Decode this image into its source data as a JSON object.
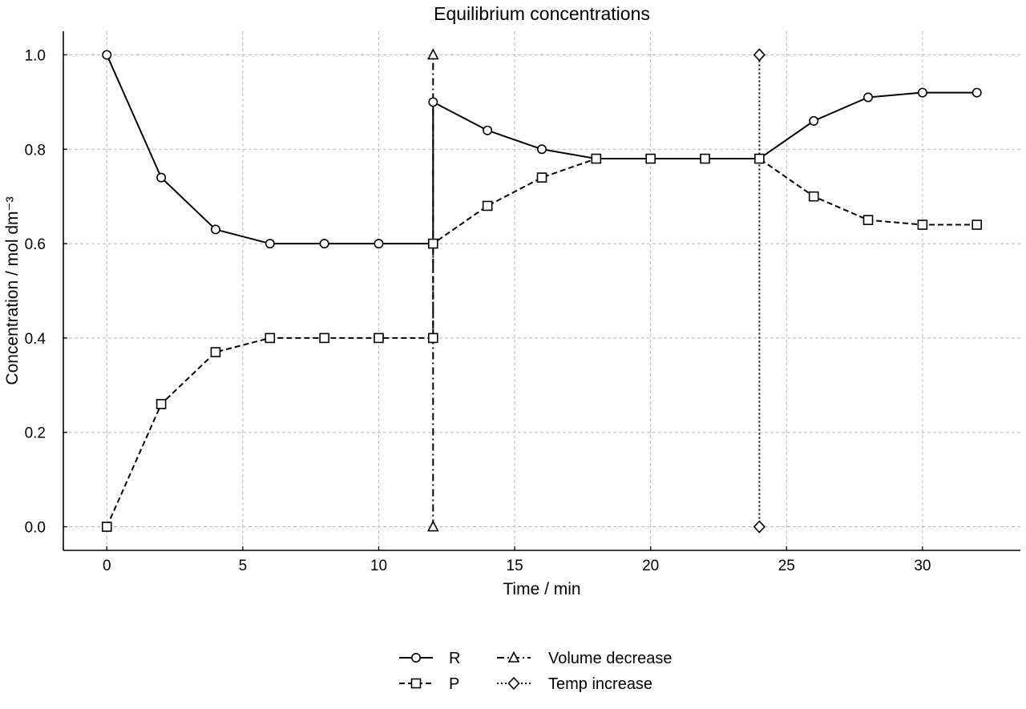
{
  "chart_data": {
    "type": "line",
    "title": "Equilibrium concentrations",
    "xlabel": "Time / min",
    "ylabel": "Concentration / mol dm⁻³",
    "xlim": [
      -1.6,
      33.6
    ],
    "ylim": [
      -0.05,
      1.05
    ],
    "xticks": [
      0,
      5,
      10,
      15,
      20,
      25,
      30
    ],
    "xtick_labels": [
      "0",
      "5",
      "10",
      "15",
      "20",
      "25",
      "30"
    ],
    "yticks": [
      0.0,
      0.2,
      0.4,
      0.6,
      0.8,
      1.0
    ],
    "ytick_labels": [
      "0.0",
      "0.2",
      "0.4",
      "0.6",
      "0.8",
      "1.0"
    ],
    "grid": true,
    "legend_position": "bottom-center",
    "series": [
      {
        "name": "R",
        "line_style": "solid",
        "marker": "circle",
        "color": "#000000",
        "x": [
          0,
          2,
          4,
          6,
          8,
          10,
          12,
          12,
          14,
          16,
          18,
          20,
          22,
          24,
          26,
          28,
          30,
          32
        ],
        "y": [
          1.0,
          0.74,
          0.63,
          0.6,
          0.6,
          0.6,
          0.6,
          0.9,
          0.84,
          0.8,
          0.78,
          0.78,
          0.78,
          0.78,
          0.86,
          0.91,
          0.92,
          0.92
        ]
      },
      {
        "name": "P",
        "line_style": "dashed",
        "marker": "square",
        "color": "#000000",
        "x": [
          0,
          2,
          4,
          6,
          8,
          10,
          12,
          12,
          14,
          16,
          18,
          20,
          22,
          24,
          26,
          28,
          30,
          32
        ],
        "y": [
          0.0,
          0.26,
          0.37,
          0.4,
          0.4,
          0.4,
          0.4,
          0.6,
          0.68,
          0.74,
          0.78,
          0.78,
          0.78,
          0.78,
          0.7,
          0.65,
          0.64,
          0.64
        ]
      },
      {
        "name": "Volume decrease",
        "line_style": "dashdot",
        "marker": "triangle",
        "color": "#000000",
        "x": [
          12,
          12
        ],
        "y": [
          0.0,
          1.0
        ]
      },
      {
        "name": "Temp increase",
        "line_style": "dotted",
        "marker": "diamond",
        "color": "#000000",
        "x": [
          24,
          24
        ],
        "y": [
          0.0,
          1.0
        ]
      }
    ]
  }
}
